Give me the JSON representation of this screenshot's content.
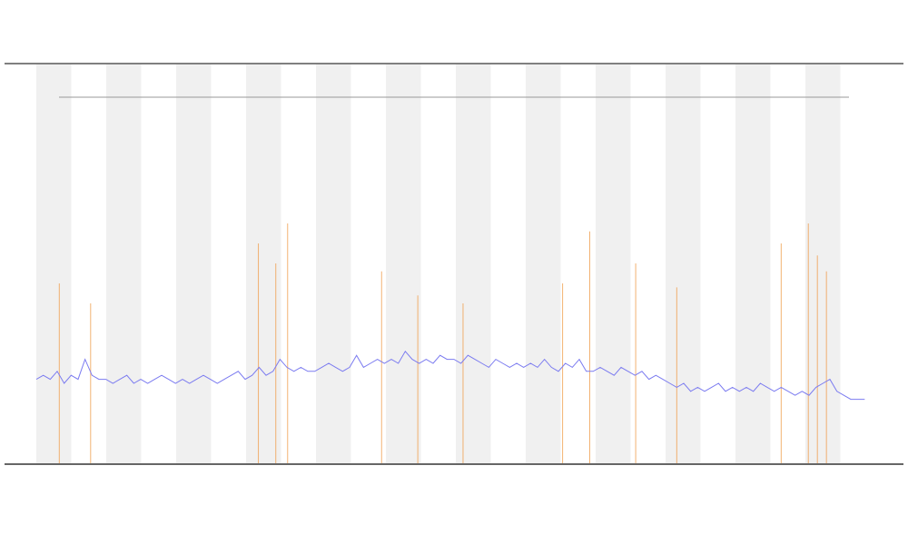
{
  "chart_data": {
    "type": "line",
    "xlim": [
      0,
      120
    ],
    "ylim": [
      0,
      100
    ],
    "x": [
      0,
      1,
      2,
      3,
      4,
      5,
      6,
      7,
      8,
      9,
      10,
      11,
      12,
      13,
      14,
      15,
      16,
      17,
      18,
      19,
      20,
      21,
      22,
      23,
      24,
      25,
      26,
      27,
      28,
      29,
      30,
      31,
      32,
      33,
      34,
      35,
      36,
      37,
      38,
      39,
      40,
      41,
      42,
      43,
      44,
      45,
      46,
      47,
      48,
      49,
      50,
      51,
      52,
      53,
      54,
      55,
      56,
      57,
      58,
      59,
      60,
      61,
      62,
      63,
      64,
      65,
      66,
      67,
      68,
      69,
      70,
      71,
      72,
      73,
      74,
      75,
      76,
      77,
      78,
      79,
      80,
      81,
      82,
      83,
      84,
      85,
      86,
      87,
      88,
      89,
      90,
      91,
      92,
      93,
      94,
      95,
      96,
      97,
      98,
      99,
      100,
      101,
      102,
      103,
      104,
      105,
      106,
      107,
      108,
      109,
      110,
      111,
      112,
      113,
      114,
      115,
      116,
      117,
      118,
      119
    ],
    "series": [
      {
        "color": "#7b7bf0",
        "values": [
          21,
          22,
          21,
          23,
          20,
          22,
          21,
          26,
          22,
          21,
          21,
          20,
          21,
          22,
          20,
          21,
          20,
          21,
          22,
          21,
          20,
          21,
          20,
          21,
          22,
          21,
          20,
          21,
          22,
          23,
          21,
          22,
          24,
          22,
          23,
          26,
          24,
          23,
          24,
          23,
          23,
          24,
          25,
          24,
          23,
          24,
          27,
          24,
          25,
          26,
          25,
          26,
          25,
          28,
          26,
          25,
          26,
          25,
          27,
          26,
          26,
          25,
          27,
          26,
          25,
          24,
          26,
          25,
          24,
          25,
          24,
          25,
          24,
          26,
          24,
          23,
          25,
          24,
          26,
          23,
          23,
          24,
          23,
          22,
          24,
          23,
          22,
          23,
          21,
          22,
          21,
          20,
          19,
          20,
          18,
          19,
          18,
          19,
          20,
          18,
          19,
          18,
          19,
          18,
          20,
          19,
          18,
          19,
          18,
          17,
          18,
          17,
          19,
          20,
          21,
          18,
          17,
          16,
          16,
          16
        ]
      },
      {
        "color": "#f0a050",
        "x": [
          3.3,
          7.8,
          31.9,
          34.4,
          36.1,
          49.6,
          54.8,
          61.3,
          75.6,
          79.5,
          86.1,
          92,
          107,
          110.9,
          112.2,
          113.5
        ],
        "values": [
          45,
          40,
          55,
          50,
          60,
          48,
          42,
          40,
          45,
          58,
          50,
          44,
          55,
          60,
          52,
          48
        ]
      }
    ]
  }
}
